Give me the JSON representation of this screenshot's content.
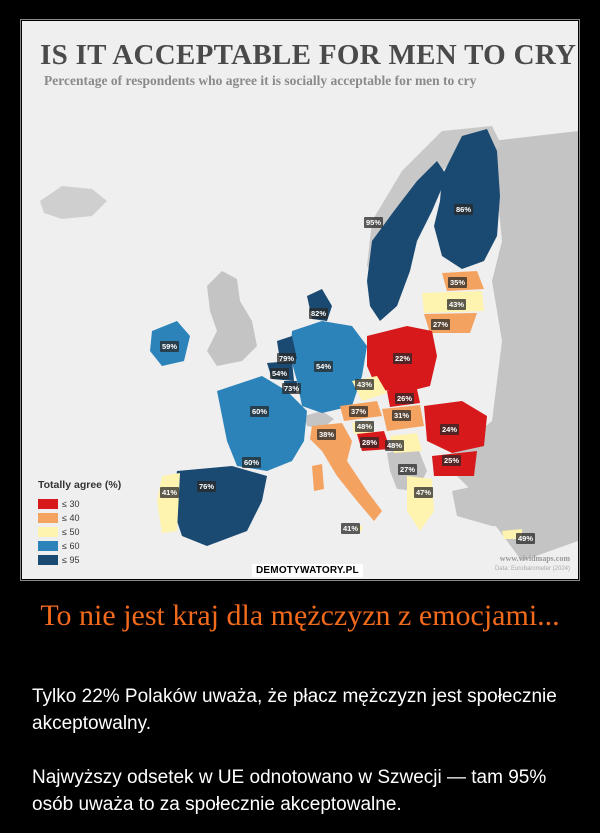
{
  "map": {
    "title": "IS IT ACCEPTABLE FOR MEN TO CRY?",
    "subtitle": "Percentage of respondents who agree it is socially acceptable for men to cry",
    "legend": {
      "title": "Totally agree (%)",
      "items": [
        {
          "label": "≤ 30",
          "color": "#d7191c"
        },
        {
          "label": "≤ 40",
          "color": "#f4a260"
        },
        {
          "label": "≤ 50",
          "color": "#fff3b0"
        },
        {
          "label": "≤ 60",
          "color": "#2b83ba"
        },
        {
          "label": "≤ 95",
          "color": "#1a4a72"
        }
      ]
    },
    "regions": [
      {
        "name": "Ireland",
        "value": "59%"
      },
      {
        "name": "Netherlands",
        "value": "79%"
      },
      {
        "name": "Belgium",
        "value": "54%"
      },
      {
        "name": "Luxembourg",
        "value": "73%"
      },
      {
        "name": "France",
        "value": "60%"
      },
      {
        "name": "Andorra area",
        "value": "60%"
      },
      {
        "name": "Spain",
        "value": "76%"
      },
      {
        "name": "Portugal",
        "value": "41%"
      },
      {
        "name": "Denmark",
        "value": "82%"
      },
      {
        "name": "Germany",
        "value": "54%"
      },
      {
        "name": "Sweden",
        "value": "95%"
      },
      {
        "name": "Finland",
        "value": "86%"
      },
      {
        "name": "Estonia",
        "value": "35%"
      },
      {
        "name": "Latvia",
        "value": "43%"
      },
      {
        "name": "Lithuania",
        "value": "27%"
      },
      {
        "name": "Poland",
        "value": "22%"
      },
      {
        "name": "Czechia",
        "value": "43%"
      },
      {
        "name": "Slovakia",
        "value": "26%"
      },
      {
        "name": "Austria",
        "value": "37%"
      },
      {
        "name": "Hungary",
        "value": "31%"
      },
      {
        "name": "Italy north",
        "value": "38%"
      },
      {
        "name": "Slovenia",
        "value": "48%"
      },
      {
        "name": "Croatia",
        "value": "28%"
      },
      {
        "name": "Bosnia area",
        "value": "48%"
      },
      {
        "name": "Romania",
        "value": "24%"
      },
      {
        "name": "Bulgaria",
        "value": "25%"
      },
      {
        "name": "Serbia area",
        "value": "27%"
      },
      {
        "name": "Greece",
        "value": "47%"
      },
      {
        "name": "Italy south",
        "value": "41%"
      },
      {
        "name": "Cyprus",
        "value": "49%"
      }
    ],
    "colors": {
      "panel_bg": "#efefef",
      "non_eu": "#c4c4c4",
      "sea": "#efefef",
      "dark_blue": "#1a4a72",
      "mid_blue": "#2b83ba",
      "red": "#d7191c",
      "orange": "#f4a260",
      "yellow": "#fff3b0"
    },
    "source_url": "www.vividmaps.com",
    "source_note": "Data: Eurobarometer (2024)",
    "watermark": "DEMOTYWATORY.PL"
  },
  "headline": "To nie jest kraj dla mężczyzn z emocjami...",
  "body": [
    "Tylko 22% Polaków uważa, że płacz mężczyzn jest społecznie akceptowalny.",
    "Najwyższy odsetek w UE odnotowano w Szwecji — tam 95% osób uważa to za społecznie akceptowalne."
  ]
}
